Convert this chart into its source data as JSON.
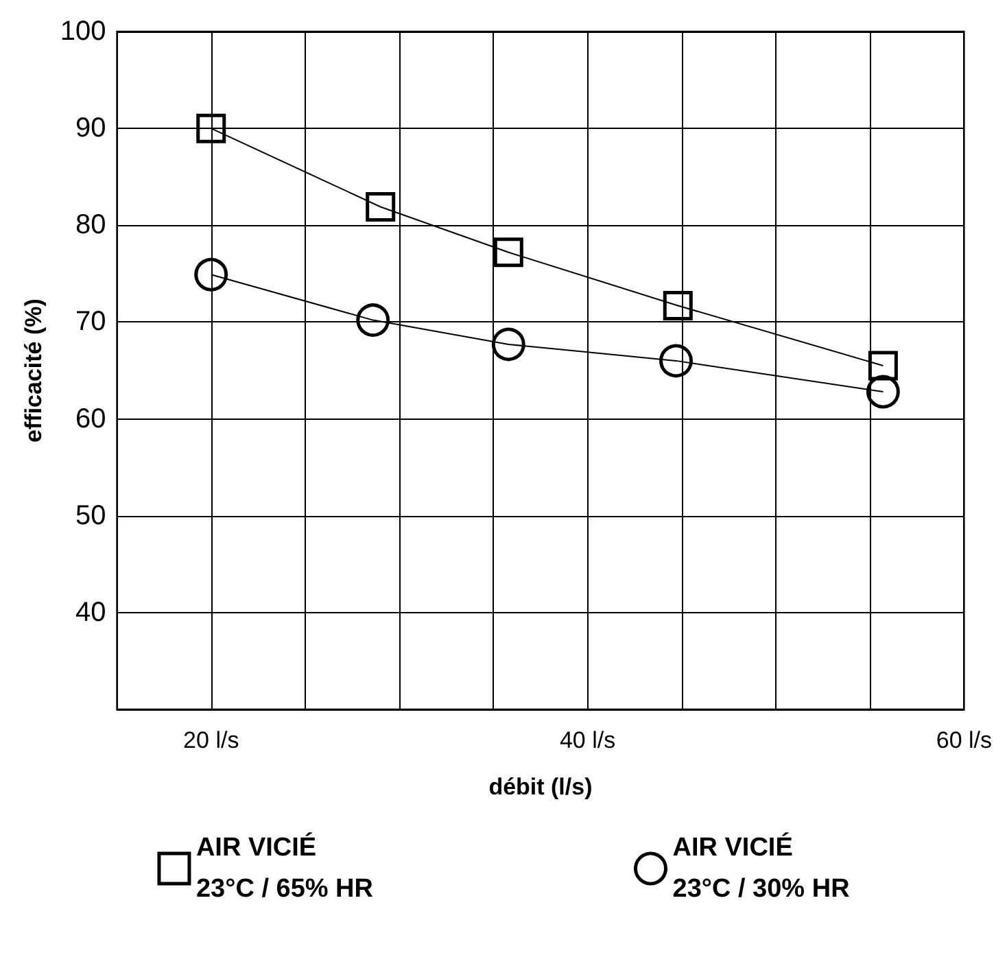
{
  "chart_data": {
    "type": "line",
    "xlabel": "débit (l/s)",
    "ylabel": "efficacité (%)",
    "xlim": [
      15,
      60
    ],
    "xticks": [
      {
        "value": 15,
        "label": null
      },
      {
        "value": 20,
        "label": "20 l/s"
      },
      {
        "value": 25,
        "label": null
      },
      {
        "value": 30,
        "label": null
      },
      {
        "value": 35,
        "label": null
      },
      {
        "value": 40,
        "label": "40 l/s"
      },
      {
        "value": 45,
        "label": null
      },
      {
        "value": 50,
        "label": null
      },
      {
        "value": 55,
        "label": null
      },
      {
        "value": 60,
        "label": "60 l/s"
      }
    ],
    "ylim": [
      30,
      100
    ],
    "yticks": [
      40,
      50,
      60,
      70,
      80,
      90,
      100
    ],
    "grid": true,
    "legend": "bottom",
    "series": [
      {
        "name": "AIR VICIÉ\n23°C / 65% HR",
        "color": "#000000",
        "marker": "square",
        "x": [
          20,
          29,
          35.8,
          44.8,
          55.7
        ],
        "values": [
          90,
          81.9,
          77.2,
          71.7,
          65.5
        ]
      },
      {
        "name": "AIR VICIÉ\n23°C / 30% HR",
        "color": "#000000",
        "marker": "circle",
        "x": [
          20,
          28.6,
          35.8,
          44.7,
          55.7
        ],
        "values": [
          74.9,
          70.2,
          67.7,
          66.0,
          62.8
        ]
      }
    ]
  }
}
